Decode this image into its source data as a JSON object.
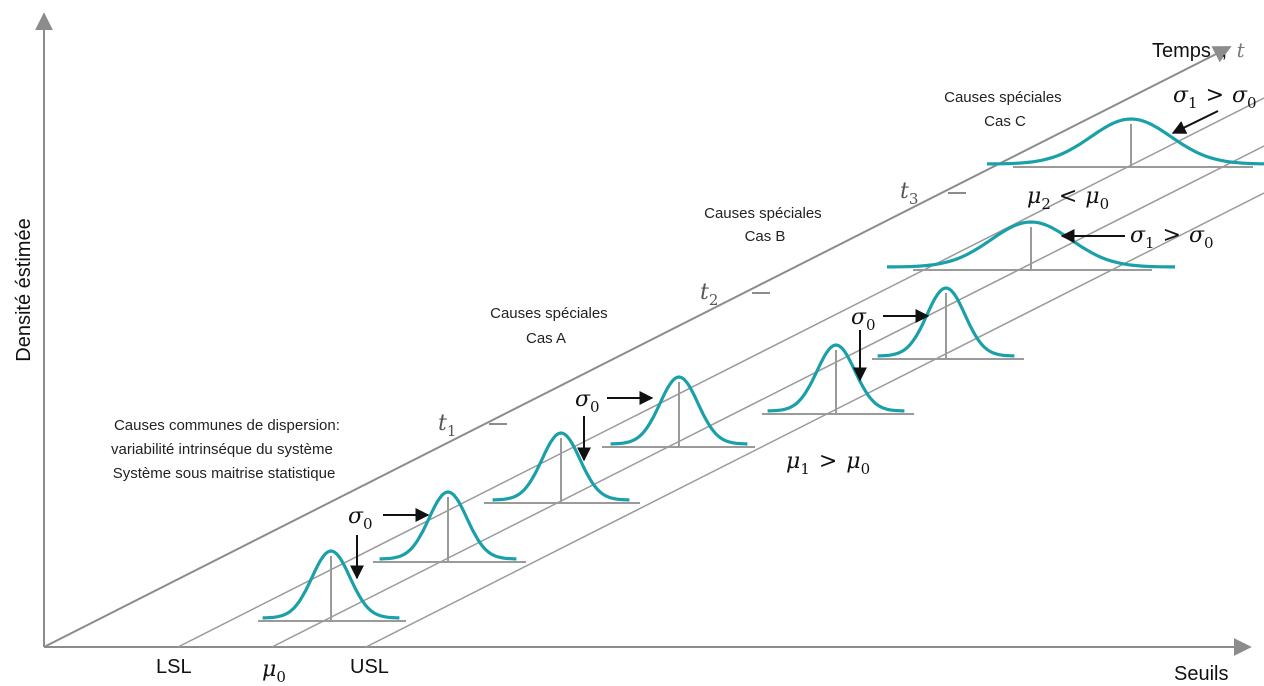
{
  "colors": {
    "curve": "#1aa0a8",
    "guide": "#9a9a9a",
    "axis": "#8c8c8c",
    "arrow": "#111111",
    "text": "#222222"
  },
  "axes": {
    "y_label": "Densité éstimée",
    "x_label": "Seuils",
    "time_label": "Temps",
    "time_separator": ",",
    "time_symbol": "t",
    "x_ticks": {
      "lsl": "LSL",
      "usl": "USL",
      "mu": "μ",
      "mu_sub": "0"
    }
  },
  "time_marks": [
    {
      "symbol": "t",
      "sub": "1"
    },
    {
      "symbol": "t",
      "sub": "2"
    },
    {
      "symbol": "t",
      "sub": "3"
    }
  ],
  "notes": {
    "common": [
      "Causes communes de dispersion:",
      "variabilité intrinséque du système",
      "Système sous maitrise statistique"
    ],
    "case_a": [
      "Causes spéciales",
      "Cas A"
    ],
    "case_b": [
      "Causes spéciales",
      "Cas B"
    ],
    "case_c": [
      "Causes spéciales",
      "Cas C"
    ]
  },
  "symbols": {
    "sigma": "σ",
    "mu": "μ",
    "gt": ">",
    "lt": "<",
    "sub0": "0",
    "sub1": "1",
    "sub2": "2"
  },
  "conditions": {
    "mean_shift_up": {
      "left": "μ",
      "left_sub": "1",
      "op": ">",
      "right": "μ",
      "right_sub": "0"
    },
    "sigma_up_b": {
      "left": "σ",
      "left_sub": "1",
      "op": ">",
      "right": "σ",
      "right_sub": "0"
    },
    "mean_shift_down": {
      "left": "μ",
      "left_sub": "2",
      "op": "<",
      "right": "μ",
      "right_sub": "0"
    },
    "sigma_up_c": {
      "left": "σ",
      "left_sub": "1",
      "op": ">",
      "right": "σ",
      "right_sub": "0"
    }
  },
  "distributions": [
    {
      "group": "common",
      "mean_offset": 0,
      "spread": "σ0",
      "shape": "narrow"
    },
    {
      "group": "common",
      "mean_offset": 0,
      "spread": "σ0",
      "shape": "narrow"
    },
    {
      "group": "common",
      "mean_offset": 0,
      "spread": "σ0",
      "shape": "narrow"
    },
    {
      "group": "case_a",
      "mean_offset": 0,
      "spread": "σ0",
      "shape": "narrow"
    },
    {
      "group": "case_a",
      "mean_offset": "+",
      "spread": "σ0",
      "shape": "narrow"
    },
    {
      "group": "case_a",
      "mean_offset": "+",
      "spread": "σ0",
      "shape": "narrow"
    },
    {
      "group": "case_b",
      "mean_offset": 0,
      "spread": "σ1",
      "shape": "wide"
    },
    {
      "group": "case_c",
      "mean_offset": "-",
      "spread": "σ1",
      "shape": "wide"
    }
  ]
}
